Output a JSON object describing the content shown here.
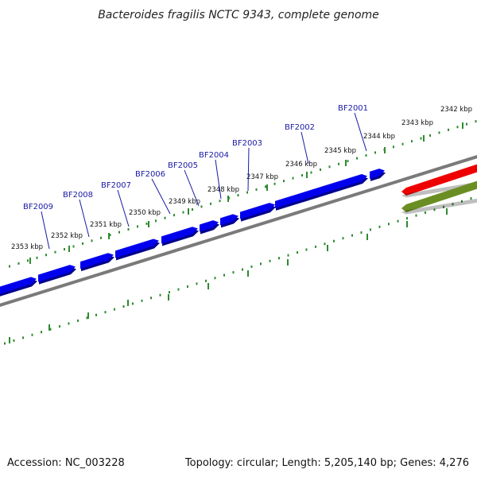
{
  "title": "Bacteroides fragilis NCTC 9343, complete genome",
  "footer": {
    "accession": "Accession: NC_003228",
    "summary": "Topology: circular; Length: 5,205,140 bp; Genes: 4,276"
  },
  "colors": {
    "backbone": "#7a7a7a",
    "gene": "#0000ee",
    "gene_shadow": "#00008c",
    "ticks": "#2e8b2e",
    "labels": "#1a1aa6",
    "feature_red": "#ee0000",
    "feature_olive": "#6b8e23"
  },
  "scale": {
    "unit": "kbp",
    "ticks": [
      {
        "label": "2353 kbp"
      },
      {
        "label": "2352 kbp"
      },
      {
        "label": "2351 kbp"
      },
      {
        "label": "2350 kbp"
      },
      {
        "label": "2349 kbp"
      },
      {
        "label": "2348 kbp"
      },
      {
        "label": "2347 kbp"
      },
      {
        "label": "2346 kbp"
      },
      {
        "label": "2345 kbp"
      },
      {
        "label": "2344 kbp"
      },
      {
        "label": "2343 kbp"
      },
      {
        "label": "2342 kbp"
      }
    ]
  },
  "genes": [
    {
      "name": "BF2009"
    },
    {
      "name": "BF2008"
    },
    {
      "name": "BF2007"
    },
    {
      "name": "BF2006"
    },
    {
      "name": "BF2005"
    },
    {
      "name": "BF2004"
    },
    {
      "name": "BF2003"
    },
    {
      "name": "BF2002"
    },
    {
      "name": "BF2001"
    }
  ]
}
